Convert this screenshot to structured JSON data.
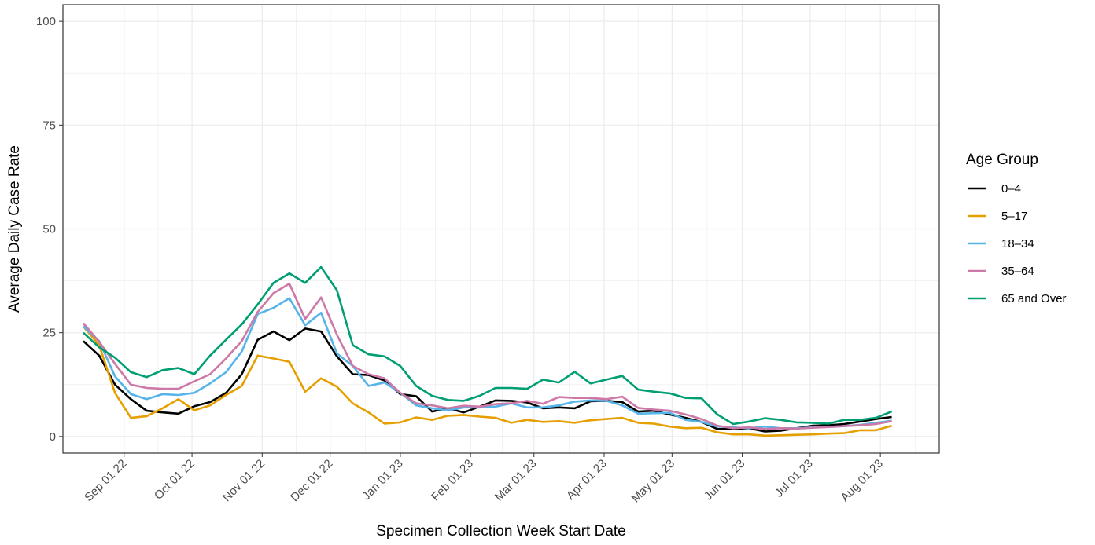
{
  "chart_data": {
    "type": "line",
    "xlabel": "Specimen Collection Week Start Date",
    "ylabel": "Average Daily Case Rate",
    "ylim": [
      -4,
      104
    ],
    "yticks": [
      0,
      25,
      50,
      75,
      100
    ],
    "xlim": [
      "2022-08-05",
      "2023-08-27"
    ],
    "xticks": [
      {
        "date": "2022-09-01",
        "label": "Sep 01 22"
      },
      {
        "date": "2022-10-01",
        "label": "Oct 01 22"
      },
      {
        "date": "2022-11-01",
        "label": "Nov 01 22"
      },
      {
        "date": "2022-12-01",
        "label": "Dec 01 22"
      },
      {
        "date": "2023-01-01",
        "label": "Jan 01 23"
      },
      {
        "date": "2023-02-01",
        "label": "Feb 01 23"
      },
      {
        "date": "2023-03-01",
        "label": "Mar 01 23"
      },
      {
        "date": "2023-04-01",
        "label": "Apr 01 23"
      },
      {
        "date": "2023-05-01",
        "label": "May 01 23"
      },
      {
        "date": "2023-06-01",
        "label": "Jun 01 23"
      },
      {
        "date": "2023-07-01",
        "label": "Jul 01 23"
      },
      {
        "date": "2023-08-01",
        "label": "Aug 01 23"
      }
    ],
    "grid": true,
    "legend_title": "Age Group",
    "legend_position": "right",
    "x": [
      "2022-08-14",
      "2022-08-21",
      "2022-08-28",
      "2022-09-04",
      "2022-09-11",
      "2022-09-18",
      "2022-09-25",
      "2022-10-02",
      "2022-10-09",
      "2022-10-16",
      "2022-10-23",
      "2022-10-30",
      "2022-11-06",
      "2022-11-13",
      "2022-11-20",
      "2022-11-27",
      "2022-12-04",
      "2022-12-11",
      "2022-12-18",
      "2022-12-25",
      "2023-01-01",
      "2023-01-08",
      "2023-01-15",
      "2023-01-22",
      "2023-01-29",
      "2023-02-05",
      "2023-02-12",
      "2023-02-19",
      "2023-02-26",
      "2023-03-05",
      "2023-03-12",
      "2023-03-19",
      "2023-03-26",
      "2023-04-02",
      "2023-04-09",
      "2023-04-16",
      "2023-04-23",
      "2023-04-30",
      "2023-05-07",
      "2023-05-14",
      "2023-05-21",
      "2023-05-28",
      "2023-06-04",
      "2023-06-11",
      "2023-06-18",
      "2023-06-25",
      "2023-07-02",
      "2023-07-09",
      "2023-07-16",
      "2023-07-23",
      "2023-07-30",
      "2023-08-06"
    ],
    "series": [
      {
        "name": "0–4",
        "color": "#000000",
        "values": [
          23.0,
          19.5,
          12.5,
          9.0,
          6.2,
          5.8,
          5.5,
          7.3,
          8.3,
          10.5,
          15.0,
          23.3,
          25.3,
          23.2,
          26.0,
          25.3,
          19.3,
          15.0,
          14.8,
          13.5,
          10.2,
          9.7,
          6.0,
          6.8,
          5.8,
          7.2,
          8.7,
          8.6,
          8.2,
          6.8,
          7.0,
          6.8,
          8.5,
          8.6,
          8.3,
          6.0,
          6.2,
          5.3,
          4.5,
          3.5,
          1.8,
          1.8,
          2.0,
          1.2,
          1.4,
          2.0,
          2.6,
          2.7,
          3.0,
          3.6,
          4.2,
          4.7
        ]
      },
      {
        "name": "5–17",
        "color": "#e69f00",
        "values": [
          26.5,
          22.0,
          10.5,
          4.5,
          4.9,
          6.8,
          9.0,
          6.3,
          7.5,
          10.0,
          12.2,
          19.5,
          18.8,
          18.0,
          10.8,
          14.0,
          12.0,
          8.0,
          5.8,
          3.1,
          3.4,
          4.6,
          4.0,
          5.0,
          5.2,
          4.8,
          4.5,
          3.3,
          4.0,
          3.5,
          3.7,
          3.3,
          3.9,
          4.2,
          4.5,
          3.3,
          3.1,
          2.4,
          2.0,
          2.1,
          1.0,
          0.5,
          0.5,
          0.2,
          0.3,
          0.4,
          0.5,
          0.7,
          0.8,
          1.5,
          1.5,
          2.6
        ]
      },
      {
        "name": "18–34",
        "color": "#56b4e9",
        "values": [
          26.5,
          23.0,
          14.5,
          10.2,
          9.0,
          10.2,
          10.0,
          10.5,
          12.8,
          15.5,
          20.5,
          29.5,
          31.0,
          33.3,
          26.8,
          29.8,
          20.0,
          17.0,
          12.2,
          13.0,
          10.5,
          7.5,
          6.8,
          6.3,
          7.0,
          7.0,
          7.2,
          8.0,
          7.0,
          7.0,
          7.5,
          8.4,
          8.7,
          8.6,
          7.5,
          5.5,
          5.6,
          5.7,
          4.0,
          3.5,
          2.4,
          2.2,
          2.0,
          2.4,
          2.0,
          2.0,
          2.2,
          2.3,
          2.5,
          2.8,
          3.3,
          3.8
        ]
      },
      {
        "name": "35–64",
        "color": "#cc79a7",
        "values": [
          27.3,
          22.8,
          17.5,
          12.5,
          11.7,
          11.5,
          11.5,
          13.3,
          15.0,
          18.8,
          23.0,
          30.0,
          34.5,
          36.8,
          28.3,
          33.5,
          24.5,
          17.0,
          15.0,
          14.0,
          10.5,
          8.0,
          7.5,
          6.8,
          7.4,
          7.2,
          7.8,
          8.0,
          8.6,
          7.9,
          9.5,
          9.3,
          9.3,
          9.0,
          9.6,
          6.9,
          6.5,
          6.2,
          5.3,
          4.2,
          2.6,
          2.0,
          2.2,
          1.8,
          2.0,
          1.9,
          2.1,
          2.3,
          2.5,
          2.7,
          3.0,
          3.7
        ]
      },
      {
        "name": "65 and Over",
        "color": "#009e73",
        "values": [
          25.0,
          21.5,
          19.0,
          15.5,
          14.3,
          16.0,
          16.5,
          15.0,
          19.5,
          23.3,
          27.0,
          31.8,
          37.0,
          39.3,
          37.0,
          40.8,
          35.2,
          22.0,
          19.8,
          19.3,
          17.0,
          12.2,
          9.8,
          8.8,
          8.6,
          9.8,
          11.7,
          11.7,
          11.5,
          13.7,
          13.0,
          15.6,
          12.8,
          13.7,
          14.6,
          11.3,
          10.8,
          10.4,
          9.3,
          9.2,
          5.3,
          3.0,
          3.6,
          4.4,
          4.0,
          3.4,
          3.3,
          3.1,
          4.0,
          4.0,
          4.5,
          6.0
        ]
      }
    ]
  }
}
